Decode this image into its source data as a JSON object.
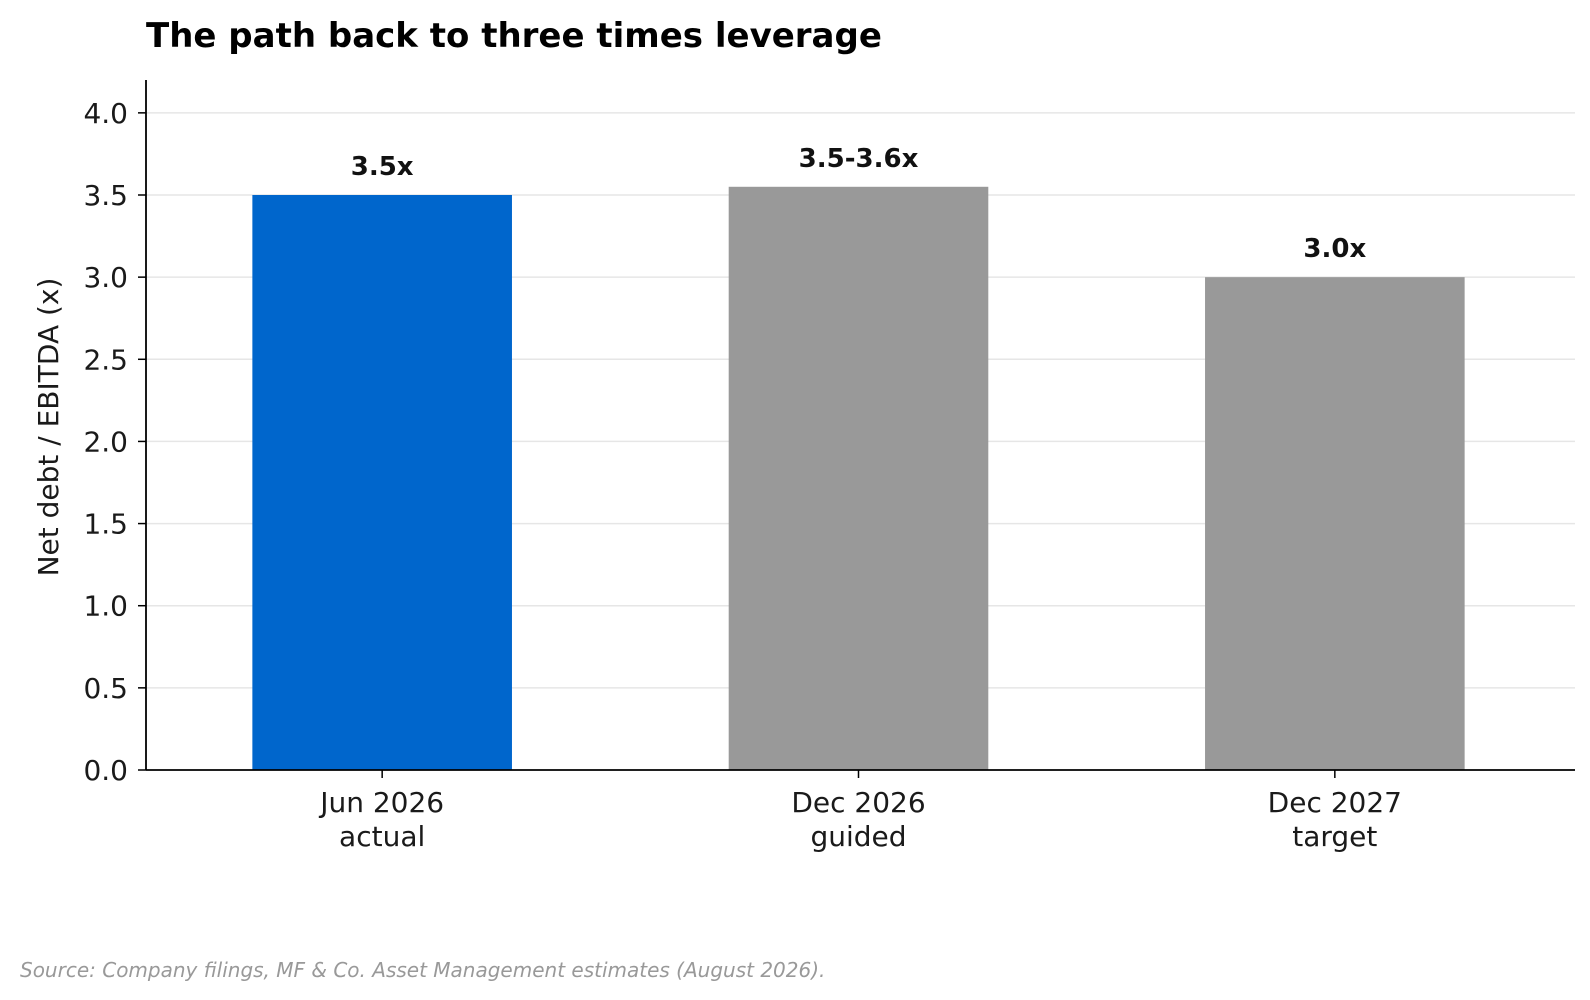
{
  "chart_data": {
    "type": "bar",
    "title": "The path back to three times leverage",
    "xlabel": "",
    "ylabel": "Net debt / EBITDA (x)",
    "ylim": [
      0,
      4.2
    ],
    "yticks": [
      "0.0",
      "0.5",
      "1.0",
      "1.5",
      "2.0",
      "2.5",
      "3.0",
      "3.5",
      "4.0"
    ],
    "grid": "horizontal",
    "categories": [
      [
        "Jun 2026",
        "actual"
      ],
      [
        "Dec 2026",
        "guided"
      ],
      [
        "Dec 2027",
        "target"
      ]
    ],
    "values": [
      3.5,
      3.55,
      3.0
    ],
    "data_labels": [
      "3.5x",
      "3.5-3.6x",
      "3.0x"
    ],
    "colors": [
      "#0066cc",
      "#999999",
      "#999999"
    ],
    "source": "Source: Company filings, MF & Co. Asset Management estimates (August 2026)."
  }
}
